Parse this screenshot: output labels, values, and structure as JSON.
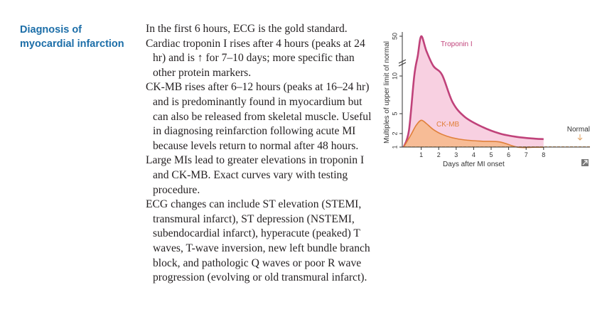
{
  "section": {
    "heading": "Diagnosis of myocardial infarction",
    "paragraphs": [
      "In the first 6 hours, ECG is the gold standard.",
      "Cardiac troponin I rises after 4 hours (peaks at 24 hr) and is ↑ for 7–10 days; more specific than other protein markers.",
      "CK-MB rises after 6–12 hours (peaks at 16–24 hr) and is predominantly found in myocardium but can also be released from skeletal muscle. Useful in diagnosing reinfarction following acute MI because levels return to normal after 48 hours.",
      "Large MIs lead to greater elevations in troponin I and CK-MB. Exact curves vary with testing procedure.",
      "ECG changes can include ST elevation (STEMI, transmural infarct), ST depression (NSTEMI, subendocardial infarct), hyperacute (peaked) T waves, T-wave inversion, new left bundle branch block, and pathologic Q waves or poor R wave progression (evolving or old transmural infarct)."
    ]
  },
  "chart_data": {
    "type": "area",
    "xlabel": "Days after MI onset",
    "ylabel": "Multiples of upper limit of normal",
    "x_ticks": [
      "1",
      "2",
      "3",
      "4",
      "5",
      "6",
      "7",
      "8"
    ],
    "y_ticks": [
      "1",
      "2",
      "5",
      "10",
      "50"
    ],
    "axis_break": true,
    "normal_label": "Normal",
    "normal_value": 1,
    "colors": {
      "troponin_line": "#c0427a",
      "troponin_fill": "#f7c8dc",
      "ckmb_line": "#e0803a",
      "ckmb_fill": "#f6b98e",
      "normal_line": "#e0a060",
      "text": "#333333"
    },
    "series": [
      {
        "name": "Troponin I",
        "x": [
          0,
          0.3,
          0.6,
          0.8,
          1.0,
          1.3,
          1.7,
          2.2,
          2.8,
          3.5,
          4.5,
          5.5,
          6.5,
          7.5,
          8.0
        ],
        "y": [
          1,
          2.5,
          10,
          30,
          50,
          35,
          20,
          11,
          6.5,
          4.5,
          3,
          2,
          1.6,
          1.4,
          1.35
        ]
      },
      {
        "name": "CK-MB",
        "x": [
          0,
          0.4,
          0.7,
          1.0,
          1.3,
          1.7,
          2.2,
          2.8,
          3.5,
          4.5,
          5.5,
          6.5,
          7.5,
          8.0
        ],
        "y": [
          1,
          1.8,
          3.2,
          4,
          3.5,
          2.6,
          1.9,
          1.5,
          1.25,
          1.1,
          1.02,
          0.98,
          0.97,
          0.97
        ]
      }
    ],
    "icon": "expand-icon"
  }
}
